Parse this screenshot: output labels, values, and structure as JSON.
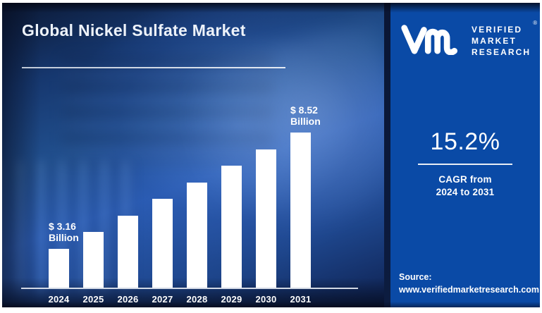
{
  "page": {
    "title": "Global Nickel Sulfate Market"
  },
  "brand": {
    "monogram_icon": "vmr-monogram",
    "lines": [
      "VERIFIED",
      "MARKET",
      "RESEARCH"
    ],
    "registered": "®"
  },
  "chart_data": {
    "type": "bar",
    "title": "Global Nickel Sulfate Market",
    "categories": [
      "2024",
      "2025",
      "2026",
      "2027",
      "2028",
      "2029",
      "2030",
      "2031"
    ],
    "values": [
      3.16,
      3.64,
      4.19,
      4.83,
      5.57,
      6.41,
      7.39,
      8.52
    ],
    "unit": "USD Billion",
    "xlabel": "",
    "ylabel": "",
    "grid": false,
    "legend": false,
    "bar_color": "#ffffff",
    "annotations": [
      {
        "index": 0,
        "line1": "$ 3.16",
        "line2": "Billion"
      },
      {
        "index": 7,
        "line1": "$ 8.52",
        "line2": "Billion"
      }
    ]
  },
  "stats": {
    "cagr": "15.2%",
    "caption_line1": "CAGR from",
    "caption_line2": "2024 to 2031"
  },
  "source": {
    "label": "Source:",
    "url": "www.verifiedmarketresearch.com"
  },
  "colors": {
    "right_panel": "#0a4aa6",
    "divider": "#0b1a3c",
    "bar": "#ffffff",
    "axis": "#dde3ec",
    "text": "#ffffff"
  }
}
